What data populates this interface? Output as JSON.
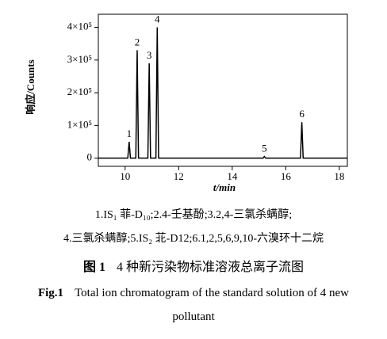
{
  "chart_data": {
    "type": "line",
    "ylabel": "响应/Counts",
    "xlabel": "t/min",
    "xlim": [
      9.0,
      18.3
    ],
    "xticks": [
      10,
      12,
      14,
      16,
      18
    ],
    "ylim": [
      -25000,
      440000
    ],
    "yticks": [
      0,
      {
        "value": 100000,
        "label": "1×10⁵"
      },
      {
        "value": 200000,
        "label": "2×10⁵"
      },
      {
        "value": 300000,
        "label": "3×10⁵"
      },
      {
        "value": 400000,
        "label": "4×10⁵"
      }
    ],
    "series": [
      {
        "color": "#000000",
        "x": [
          9.0,
          10.1,
          10.15,
          10.2,
          10.4,
          10.45,
          10.5,
          10.85,
          10.9,
          10.95,
          11.15,
          11.2,
          11.25,
          15.15,
          15.2,
          15.25,
          16.55,
          16.6,
          16.65,
          18.3
        ],
        "values": [
          0,
          0,
          50000,
          0,
          0,
          330000,
          0,
          0,
          290000,
          0,
          0,
          400000,
          0,
          0,
          5000,
          0,
          0,
          110000,
          0,
          0
        ]
      }
    ],
    "annotations": [
      {
        "text": "1",
        "x": 10.15,
        "y": 50000
      },
      {
        "text": "2",
        "x": 10.45,
        "y": 330000
      },
      {
        "text": "3",
        "x": 10.9,
        "y": 290000
      },
      {
        "text": "4",
        "x": 11.2,
        "y": 400000
      },
      {
        "text": "5",
        "x": 15.2,
        "y": 5000
      },
      {
        "text": "6",
        "x": 16.6,
        "y": 110000
      }
    ],
    "notes": [
      "1.IS₁ 菲-D₁₀;2.4-壬基酚;3.2,4-三氯杀螨醇;",
      "4.三氯杀螨醇;5.IS₂ 苝-D12;6.1,2,5,6,9,10-六溴环十二烷"
    ],
    "caption_cn_label": "图 1",
    "caption_cn": "4 种新污染物标准溶液总离子流图",
    "caption_en_label": "Fig.1",
    "caption_en": "Total ion chromatogram of the standard solution of 4 new pollutant"
  }
}
